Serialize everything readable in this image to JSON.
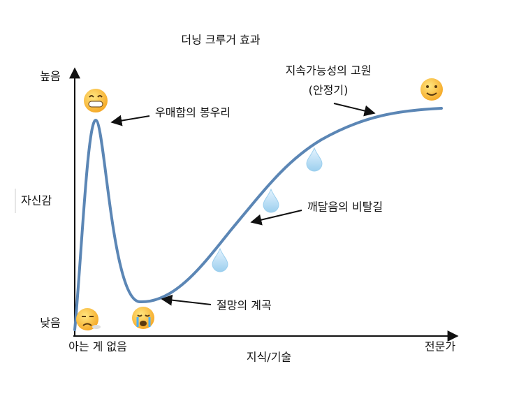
{
  "title": "더닝 크루거 효과",
  "axes": {
    "y_label": "자신감",
    "y_high": "높음",
    "y_low": "낮음",
    "x_label": "지식/기술",
    "x_low": "아는 게 없음",
    "x_high": "전문가"
  },
  "annotations": [
    {
      "label": "우매함의 봉우리"
    },
    {
      "label": "절망의 계곡"
    },
    {
      "label": "깨달음의 비탈길"
    },
    {
      "label": "지속가능성의 고원",
      "sublabel": "(안정기)"
    }
  ]
}
